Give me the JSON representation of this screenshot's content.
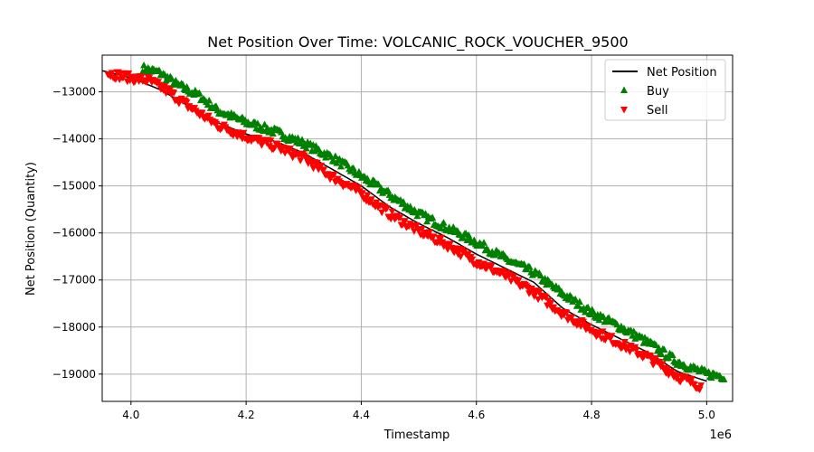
{
  "chart_data": {
    "type": "scatter",
    "title": "Net Position Over Time: VOLCANIC_ROCK_VOUCHER_9500",
    "xlabel": "Timestamp",
    "ylabel": "Net Position (Quantity)",
    "x_offset_label": "1e6",
    "xlim": [
      3.95,
      5.045
    ],
    "ylim": [
      -19580,
      -12220
    ],
    "x_ticks": [
      4.0,
      4.2,
      4.4,
      4.6,
      4.8,
      5.0
    ],
    "x_tick_labels": [
      "4.0",
      "4.2",
      "4.4",
      "4.6",
      "4.8",
      "5.0"
    ],
    "y_ticks": [
      -13000,
      -14000,
      -15000,
      -16000,
      -17000,
      -18000,
      -19000
    ],
    "y_tick_labels": [
      "−13000",
      "−14000",
      "−15000",
      "−16000",
      "−17000",
      "−18000",
      "−19000"
    ],
    "grid": true,
    "legend_position": "top-right",
    "series": [
      {
        "name": "Net Position",
        "kind": "line",
        "color": "#000000",
        "x": [
          3.95,
          4.0,
          4.05,
          4.1,
          4.15,
          4.2,
          4.25,
          4.3,
          4.35,
          4.4,
          4.45,
          4.5,
          4.55,
          4.6,
          4.65,
          4.7,
          4.75,
          4.8,
          4.85,
          4.9,
          4.95,
          5.0
        ],
        "y": [
          -12550,
          -12700,
          -12950,
          -13300,
          -13650,
          -13900,
          -14050,
          -14300,
          -14650,
          -15000,
          -15450,
          -15800,
          -16100,
          -16450,
          -16750,
          -17050,
          -17600,
          -17950,
          -18250,
          -18550,
          -18950,
          -19150
        ]
      },
      {
        "name": "Buy",
        "kind": "scatter",
        "marker": "triangle-up",
        "color": "#008000",
        "x": [
          4.02,
          4.05,
          4.08,
          4.12,
          4.15,
          4.2,
          4.25,
          4.3,
          4.35,
          4.4,
          4.45,
          4.5,
          4.55,
          4.6,
          4.65,
          4.7,
          4.75,
          4.8,
          4.85,
          4.9,
          4.95,
          5.0,
          5.03
        ],
        "y": [
          -12500,
          -12600,
          -12850,
          -13100,
          -13400,
          -13650,
          -13850,
          -14100,
          -14400,
          -14800,
          -15200,
          -15600,
          -15900,
          -16200,
          -16550,
          -16850,
          -17300,
          -17700,
          -18000,
          -18350,
          -18750,
          -19000,
          -19050
        ]
      },
      {
        "name": "Sell",
        "kind": "scatter",
        "marker": "triangle-down",
        "color": "#ff0000",
        "x": [
          3.96,
          4.0,
          4.03,
          4.06,
          4.1,
          4.15,
          4.2,
          4.25,
          4.3,
          4.35,
          4.4,
          4.45,
          4.5,
          4.55,
          4.6,
          4.65,
          4.7,
          4.75,
          4.8,
          4.85,
          4.9,
          4.95,
          4.99
        ],
        "y": [
          -12600,
          -12700,
          -12750,
          -12950,
          -13300,
          -13700,
          -13950,
          -14150,
          -14400,
          -14800,
          -15150,
          -15600,
          -15950,
          -16250,
          -16600,
          -16900,
          -17250,
          -17700,
          -18050,
          -18350,
          -18650,
          -19050,
          -19250
        ]
      }
    ]
  }
}
